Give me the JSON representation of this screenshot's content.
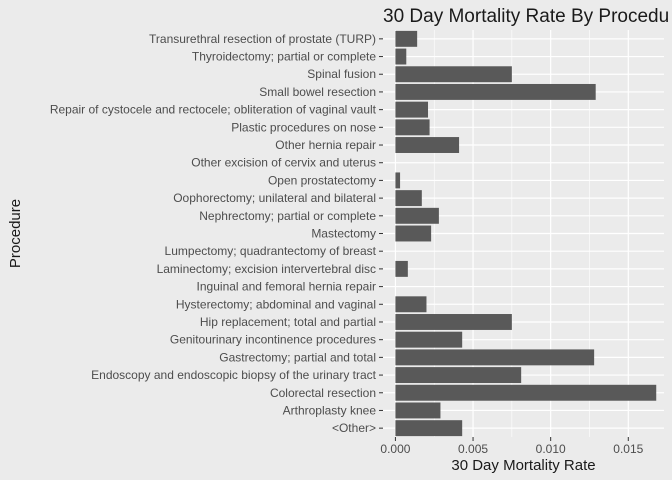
{
  "chart_data": {
    "type": "bar",
    "orientation": "horizontal",
    "title": "30 Day Mortality Rate By Procedu",
    "xlabel": "30 Day Mortality Rate",
    "ylabel": "Procedure",
    "xlim": [
      -0.0008,
      0.0173
    ],
    "xticks": [
      0.0,
      0.005,
      0.01,
      0.015
    ],
    "xtick_labels": [
      "0.000",
      "0.005",
      "0.010",
      "0.015"
    ],
    "grid": true,
    "categories": [
      "Transurethral resection of prostate (TURP)",
      "Thyroidectomy; partial or complete",
      "Spinal fusion",
      "Small bowel resection",
      "Repair of cystocele and rectocele; obliteration of vaginal vault",
      "Plastic procedures on nose",
      "Other hernia repair",
      "Other excision of cervix and uterus",
      "Open prostatectomy",
      "Oophorectomy; unilateral and bilateral",
      "Nephrectomy; partial or complete",
      "Mastectomy",
      "Lumpectomy; quadrantectomy of breast",
      "Laminectomy; excision intervertebral disc",
      "Inguinal and femoral hernia repair",
      "Hysterectomy; abdominal and vaginal",
      "Hip replacement; total and partial",
      "Genitourinary incontinence procedures",
      "Gastrectomy; partial and total",
      "Endoscopy and endoscopic biopsy of the urinary tract",
      "Colorectal resection",
      "Arthroplasty knee",
      "<Other>"
    ],
    "values": [
      0.0014,
      0.0007,
      0.0075,
      0.0129,
      0.0021,
      0.0022,
      0.0041,
      0.0,
      0.0003,
      0.0017,
      0.0028,
      0.0023,
      0.0,
      0.0008,
      0.0,
      0.002,
      0.0075,
      0.0043,
      0.0128,
      0.0081,
      0.0168,
      0.0029,
      0.0043
    ],
    "colors": {
      "background": "#ebebeb",
      "panel": "#ebebeb",
      "grid": "#ffffff",
      "bar": "#595959"
    }
  }
}
